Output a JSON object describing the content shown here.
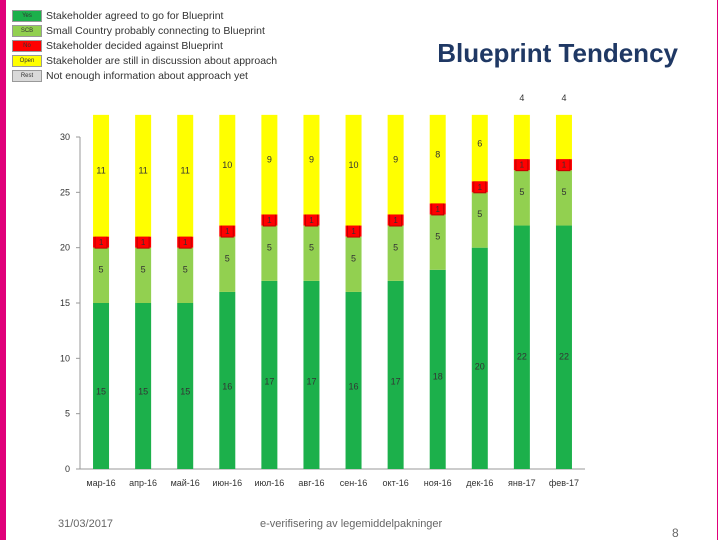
{
  "legend": [
    {
      "code": "Yes",
      "label": "Stakeholder agreed to go for Blueprint",
      "color": "#1cb04b"
    },
    {
      "code": "SCB",
      "label": "Small Country probably connecting to Blueprint",
      "color": "#92d050"
    },
    {
      "code": "No",
      "label": "Stakeholder decided against Blueprint",
      "color": "#ff0000"
    },
    {
      "code": "Open",
      "label": "Stakeholder are still in discussion about approach",
      "color": "#ffff00"
    },
    {
      "code": "Rest",
      "label": "Not enough information about approach yet",
      "color": "#d9d9d9"
    }
  ],
  "footer": {
    "date": "31/03/2017",
    "center": "e-verifisering av legemiddelpakninger",
    "page": "8"
  },
  "chart_data": {
    "type": "bar",
    "stacked": true,
    "title": "Blueprint Tendency",
    "categories": [
      "мар-16",
      "апр-16",
      "май-16",
      "июн-16",
      "июл-16",
      "авг-16",
      "сен-16",
      "окт-16",
      "ноя-16",
      "дек-16",
      "янв-17",
      "фев-17"
    ],
    "ylim": [
      0,
      30
    ],
    "yticks": [
      0,
      5,
      10,
      15,
      20,
      25,
      30
    ],
    "grid": false,
    "series": [
      {
        "code": "Yes",
        "color": "#1cb04b",
        "values": [
          15,
          15,
          15,
          16,
          17,
          17,
          16,
          17,
          18,
          20,
          22,
          22
        ]
      },
      {
        "code": "SCB",
        "color": "#92d050",
        "values": [
          5,
          5,
          5,
          5,
          5,
          5,
          5,
          5,
          5,
          5,
          5,
          5
        ]
      },
      {
        "code": "No",
        "color": "#ff0000",
        "values": [
          1,
          1,
          1,
          1,
          1,
          1,
          1,
          1,
          1,
          1,
          1,
          1
        ]
      },
      {
        "code": "Open",
        "color": "#ffff00",
        "values": [
          11,
          11,
          11,
          10,
          9,
          9,
          10,
          9,
          8,
          6,
          4,
          4
        ]
      }
    ]
  }
}
